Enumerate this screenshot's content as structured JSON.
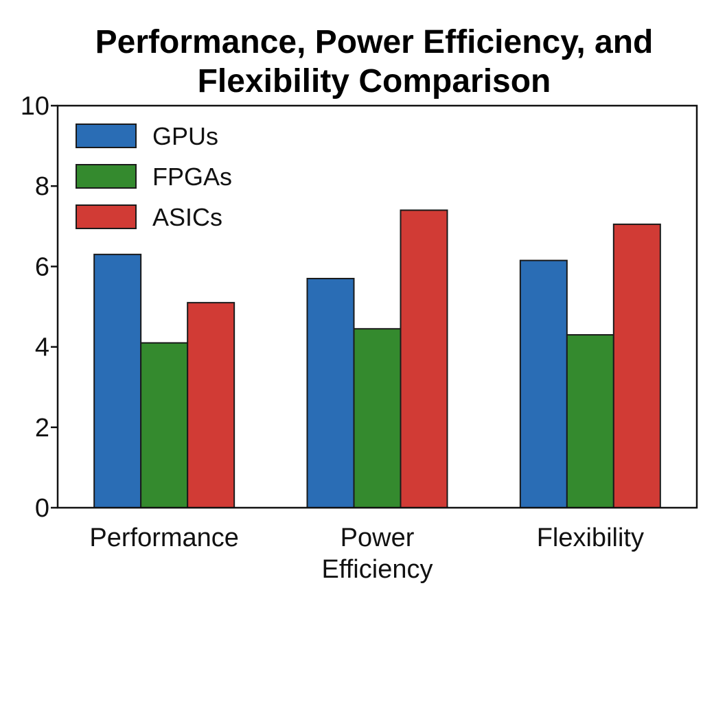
{
  "chart_data": {
    "type": "bar",
    "title": "Performance, Power Efficiency, and Flexibility Comparison",
    "title_lines": [
      "Performance, Power Efficiency, and",
      "Flexibility Comparison"
    ],
    "categories": [
      "Performance",
      "Power Efficiency",
      "Flexibility"
    ],
    "category_label_lines": [
      [
        "Performance"
      ],
      [
        "Power",
        "Efficiency"
      ],
      [
        "Flexibility"
      ]
    ],
    "series": [
      {
        "name": "GPUs",
        "color": "#2a6db5",
        "values": [
          6.3,
          5.7,
          6.15
        ]
      },
      {
        "name": "FPGAs",
        "color": "#348a2e",
        "values": [
          4.1,
          4.45,
          4.3
        ]
      },
      {
        "name": "ASICs",
        "color": "#d13b35",
        "values": [
          5.1,
          7.4,
          7.05
        ]
      }
    ],
    "xlabel": "",
    "ylabel": "",
    "ylim": [
      0,
      10
    ],
    "yticks": [
      "0",
      "2",
      "4",
      "6",
      "8",
      "10"
    ],
    "grid": false,
    "legend_position": "top-left"
  }
}
